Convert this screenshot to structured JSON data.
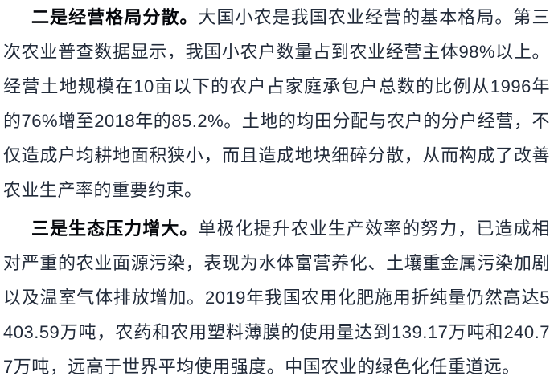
{
  "page": {
    "background_color": "#ffffff",
    "body_text_color": "#222b3a",
    "lead_text_color": "#05070c"
  },
  "article": {
    "paragraphs": [
      {
        "lead": "二是经营格局分散。",
        "body": "大国小农是我国农业经营的基本格局。第三次农业普查数据显示，我国小农户数量占到农业经营主体98%以上。经营土地规模在10亩以下的农户占家庭承包户总数的比例从1996年的76%增至2018年的85.2%。土地的均田分配与农户的分户经营，不仅造成户均耕地面积狭小，而且造成地块细碎分散，从而构成了改善农业生产率的重要约束。"
      },
      {
        "lead": "三是生态压力增大。",
        "body": "单极化提升农业生产效率的努力，已造成相对严重的农业面源污染，表现为水体富营养化、土壤重金属污染加剧以及温室气体排放增加。2019年我国农用化肥施用折纯量仍然高达5403.59万吨，农药和农用塑料薄膜的使用量达到139.17万吨和240.77万吨，远高于世界平均使用强度。中国农业的绿色化任重道远。"
      }
    ]
  }
}
